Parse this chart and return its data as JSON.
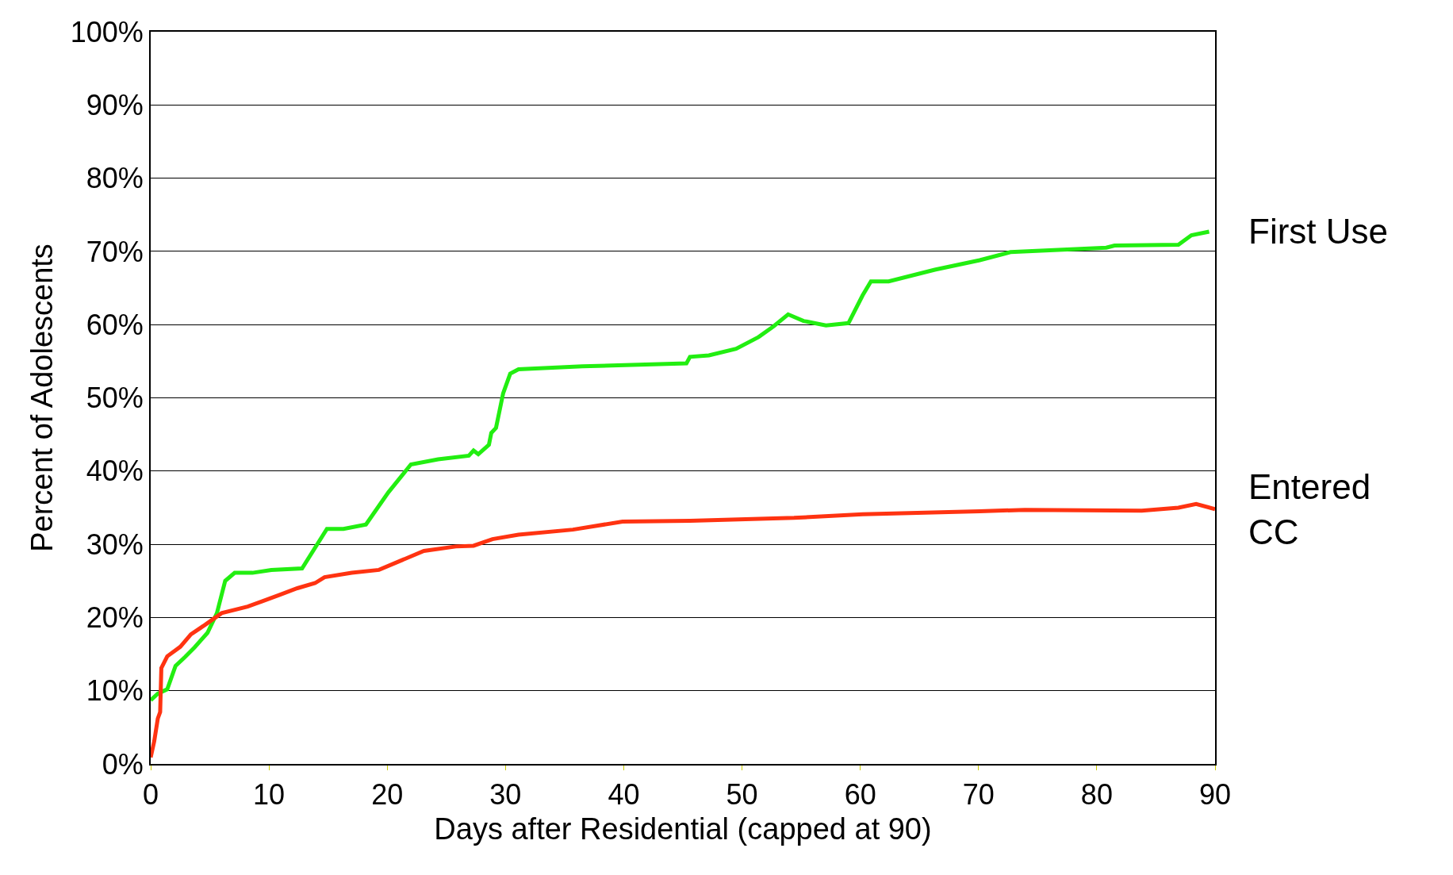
{
  "chart_data": {
    "type": "line",
    "xlabel": "Days after Residential (capped at 90)",
    "ylabel": "Percent of Adolescents",
    "xlim": [
      0,
      90
    ],
    "xticks": [
      0,
      10,
      20,
      30,
      40,
      50,
      60,
      70,
      80,
      90
    ],
    "ylim": [
      0,
      100
    ],
    "yticks": [
      {
        "value": 0,
        "label": "0%"
      },
      {
        "value": 10,
        "label": "10%"
      },
      {
        "value": 20,
        "label": "20%"
      },
      {
        "value": 30,
        "label": "30%"
      },
      {
        "value": 40,
        "label": "40%"
      },
      {
        "value": 50,
        "label": "50%"
      },
      {
        "value": 60,
        "label": "60%"
      },
      {
        "value": 70,
        "label": "70%"
      },
      {
        "value": 80,
        "label": "80%"
      },
      {
        "value": 90,
        "label": "90%"
      },
      {
        "value": 100,
        "label": "100%"
      }
    ],
    "grid": "y",
    "legend": false,
    "marker": "none",
    "line_style": "solid",
    "series": [
      {
        "name": "First Use",
        "color": "#22ee11",
        "x": [
          0,
          0.6,
          1.4,
          2.1,
          2.9,
          3.7,
          4.8,
          5.6,
          6.3,
          7.1,
          8.6,
          10.2,
          12.8,
          14.9,
          16.3,
          18.2,
          20.1,
          22.0,
          24.3,
          26.9,
          27.3,
          27.7,
          28.6,
          28.8,
          29.2,
          29.8,
          30.4,
          31.1,
          36.5,
          45.3,
          45.6,
          47.2,
          49.5,
          51.4,
          52.7,
          53.9,
          55.2,
          57.1,
          59.0,
          60.2,
          60.9,
          62.4,
          66.3,
          70.1,
          72.7,
          80.8,
          81.5,
          86.9,
          88.0,
          89.5
        ],
        "values": [
          8.7,
          9.6,
          10.2,
          13.4,
          14.6,
          15.9,
          17.9,
          20.6,
          25.0,
          26.1,
          26.1,
          26.5,
          26.7,
          32.1,
          32.1,
          32.7,
          37.1,
          40.9,
          41.6,
          42.1,
          42.8,
          42.3,
          43.6,
          45.2,
          45.9,
          50.6,
          53.3,
          53.9,
          54.3,
          54.7,
          55.6,
          55.8,
          56.7,
          58.3,
          59.8,
          61.4,
          60.5,
          59.9,
          60.2,
          64.0,
          65.9,
          65.9,
          67.5,
          68.8,
          69.9,
          70.5,
          70.8,
          70.9,
          72.2,
          72.7
        ]
      },
      {
        "name": "Entered\nCC",
        "color": "#ff3311",
        "x": [
          0,
          0.3,
          0.6,
          0.8,
          0.9,
          1.4,
          2.5,
          3.4,
          4.6,
          6.0,
          8.2,
          9.4,
          10.9,
          12.4,
          13.9,
          14.7,
          17.0,
          19.3,
          21.2,
          23.1,
          25.8,
          27.3,
          28.9,
          31.1,
          35.7,
          39.9,
          45.6,
          54.4,
          60.2,
          70.1,
          73.9,
          83.8,
          86.9,
          88.4,
          90
        ],
        "values": [
          0.9,
          3.1,
          6.2,
          7.1,
          13.1,
          14.7,
          16.0,
          17.7,
          19.0,
          20.6,
          21.5,
          22.2,
          23.1,
          24.0,
          24.7,
          25.5,
          26.1,
          26.5,
          27.8,
          29.1,
          29.7,
          29.8,
          30.7,
          31.3,
          32.0,
          33.1,
          33.2,
          33.6,
          34.1,
          34.5,
          34.7,
          34.6,
          35.0,
          35.5,
          34.8
        ]
      }
    ]
  }
}
